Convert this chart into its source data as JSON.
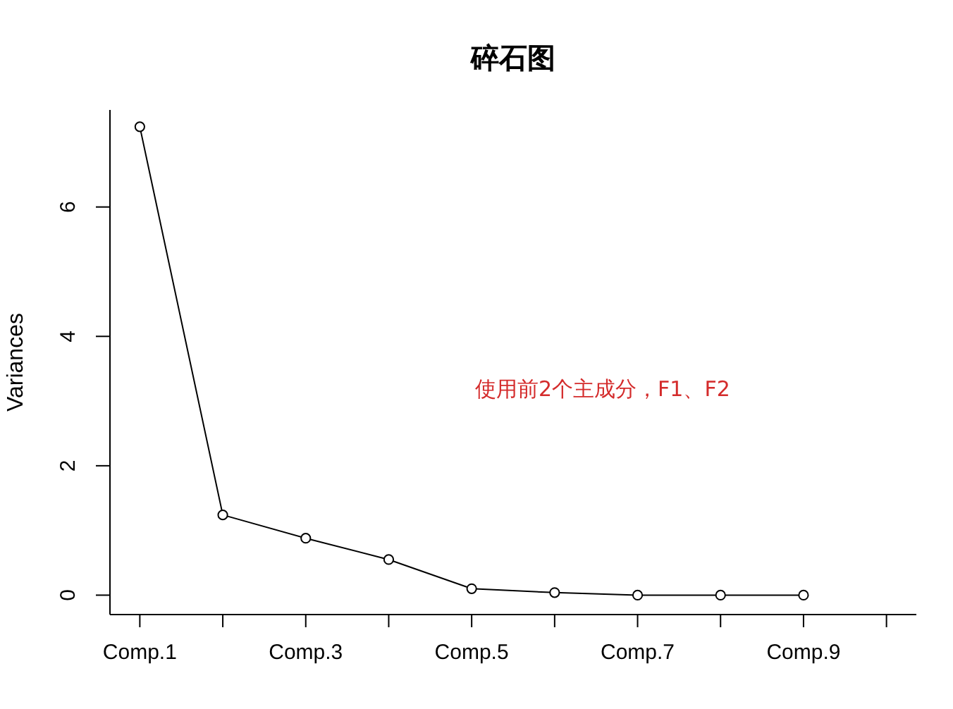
{
  "chart_data": {
    "type": "line",
    "title": "碎石图",
    "ylabel": "Variances",
    "categories": [
      "Comp.1",
      null,
      "Comp.3",
      null,
      "Comp.5",
      null,
      "Comp.7",
      null,
      "Comp.9",
      null
    ],
    "series": [
      {
        "color": "#000000",
        "values": [
          7.24,
          1.24,
          0.88,
          0.55,
          0.1,
          0.04,
          0,
          0,
          0,
          null
        ]
      }
    ],
    "ylim": [
      -0.3,
      7.5
    ],
    "yticks": [
      0,
      2,
      4,
      6
    ],
    "grid": false,
    "marker": "circle",
    "line_style": "solid",
    "annotations": [
      "使用前2个主成分，F1、F2"
    ]
  }
}
